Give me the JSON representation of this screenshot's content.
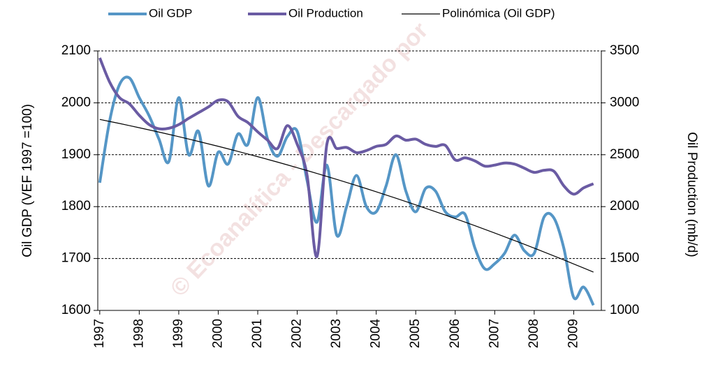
{
  "chart_data": {
    "type": "line",
    "watermark": "© Ecoanalítica - Descargado por",
    "ylabel": "Oil GDP (VEF 1997 =100)",
    "y2label": "Oil Production (mb/d)",
    "x": [
      1997,
      1997.25,
      1997.5,
      1997.75,
      1998,
      1998.25,
      1998.5,
      1998.75,
      1999,
      1999.25,
      1999.5,
      1999.75,
      2000,
      2000.25,
      2000.5,
      2000.75,
      2001,
      2001.25,
      2001.5,
      2001.75,
      2002,
      2002.25,
      2002.5,
      2002.75,
      2003,
      2003.25,
      2003.5,
      2003.75,
      2004,
      2004.25,
      2004.5,
      2004.75,
      2005,
      2005.25,
      2005.5,
      2005.75,
      2006,
      2006.25,
      2006.5,
      2006.75,
      2007,
      2007.25,
      2007.5,
      2007.75,
      2008,
      2008.25,
      2008.5,
      2008.75,
      2009,
      2009.25,
      2009.5
    ],
    "series": [
      {
        "name": "Oil GDP",
        "color": "#5596c6",
        "width": 4,
        "smooth": true,
        "values": [
          1846,
          1965,
          2035,
          2048,
          2010,
          1975,
          1930,
          1887,
          2010,
          1900,
          1945,
          1840,
          1905,
          1882,
          1940,
          1920,
          2010,
          1930,
          1897,
          1935,
          1945,
          1850,
          1770,
          1880,
          1745,
          1800,
          1860,
          1800,
          1790,
          1840,
          1900,
          1830,
          1790,
          1835,
          1830,
          1790,
          1780,
          1785,
          1720,
          1680,
          1690,
          1710,
          1745,
          1715,
          1710,
          1780,
          1778,
          1720,
          1625,
          1645,
          1610
        ]
      },
      {
        "name": "Oil Production",
        "color": "#6a5ba3",
        "width": 4,
        "smooth": true,
        "axis": "y2",
        "values": [
          3433,
          3200,
          3050,
          2990,
          2880,
          2790,
          2750,
          2755,
          2790,
          2850,
          2905,
          2960,
          3025,
          3010,
          2870,
          2810,
          2720,
          2640,
          2560,
          2780,
          2600,
          2300,
          1520,
          2600,
          2560,
          2570,
          2520,
          2540,
          2580,
          2600,
          2680,
          2640,
          2650,
          2600,
          2580,
          2590,
          2450,
          2470,
          2440,
          2390,
          2400,
          2420,
          2410,
          2370,
          2330,
          2350,
          2340,
          2200,
          2120,
          2180,
          2220
        ]
      },
      {
        "name": "Polinómica (Oil GDP)",
        "color": "#000000",
        "width": 1.2,
        "smooth": false,
        "values": [
          1968,
          1964.1,
          1960.2,
          1956.1,
          1952,
          1947.8,
          1943.6,
          1939.2,
          1934.8,
          1930.2,
          1925.6,
          1920.9,
          1916.2,
          1911.3,
          1906.4,
          1901.3,
          1896.2,
          1891,
          1885.8,
          1880.4,
          1875,
          1869.5,
          1863.9,
          1858.2,
          1852.4,
          1846.6,
          1840.7,
          1834.7,
          1828.6,
          1822.4,
          1816.2,
          1809.8,
          1803.4,
          1796.9,
          1790.3,
          1783.7,
          1776.9,
          1770.1,
          1763.2,
          1756.2,
          1749.1,
          1741.9,
          1734.7,
          1727.4,
          1720,
          1712.5,
          1704.9,
          1697.3,
          1689.5,
          1681.7,
          1673.8
        ]
      }
    ],
    "xlim": [
      1996.95,
      2009.7
    ],
    "xticks": [
      1997,
      1998,
      1999,
      2000,
      2001,
      2002,
      2003,
      2004,
      2005,
      2006,
      2007,
      2008,
      2009
    ],
    "ylim": [
      1600,
      2100
    ],
    "yticks": [
      1600,
      1700,
      1800,
      1900,
      2000,
      2100
    ],
    "y2lim": [
      1000,
      3500
    ],
    "y2ticks": [
      1000,
      1500,
      2000,
      2500,
      3000,
      3500
    ],
    "grid": true,
    "legend": "top"
  }
}
